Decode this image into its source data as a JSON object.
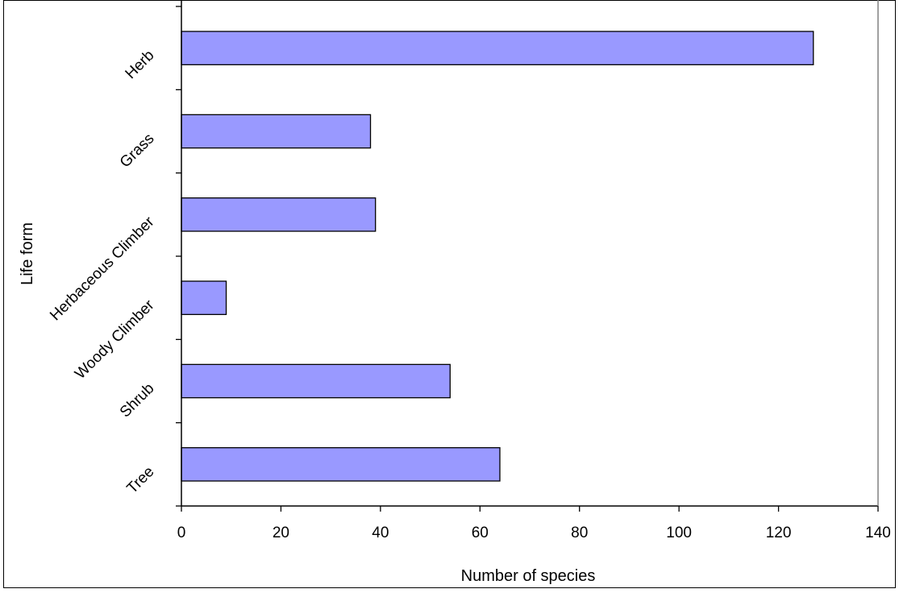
{
  "chart_data": {
    "type": "bar",
    "orientation": "horizontal",
    "categories": [
      "Tree",
      "Shrub",
      "Woody Climber",
      "Herbaceous Climber",
      "Grass",
      "Herb"
    ],
    "values": [
      64,
      54,
      9,
      39,
      38,
      127
    ],
    "xlabel": "Number of species",
    "ylabel": "Life form",
    "xlim": [
      0,
      140
    ],
    "xticks": [
      "0",
      "20",
      "40",
      "60",
      "80",
      "100",
      "120",
      "140"
    ],
    "grid": false,
    "legend": "none",
    "colors": {
      "bar_fill": "#9999ff",
      "bar_stroke": "#000000",
      "axis": "#000000",
      "plot_right_border": "#808080",
      "frame": "#000000",
      "background": "#ffffff"
    }
  }
}
